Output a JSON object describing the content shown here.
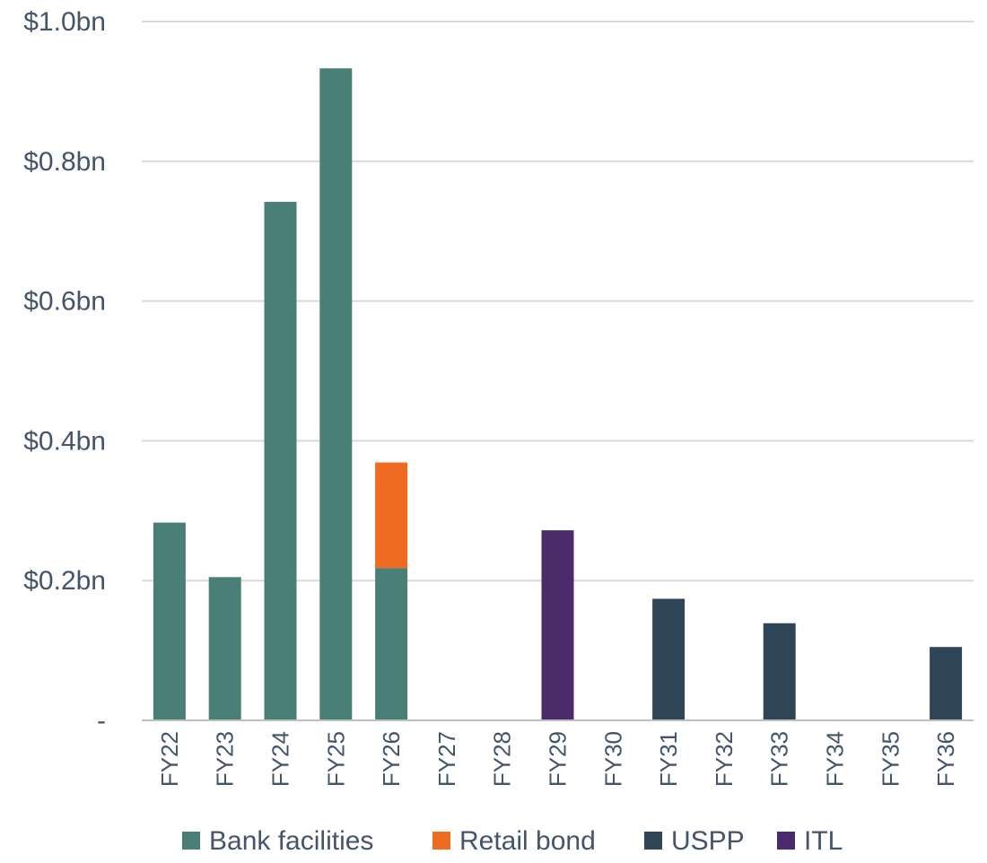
{
  "chart_data": {
    "type": "bar",
    "stacked": true,
    "categories": [
      "FY22",
      "FY23",
      "FY24",
      "FY25",
      "FY26",
      "FY27",
      "FY28",
      "FY29",
      "FY30",
      "FY31",
      "FY32",
      "FY33",
      "FY34",
      "FY35",
      "FY36"
    ],
    "series": [
      {
        "name": "Bank facilities",
        "color": "#4a7f78",
        "values": [
          0.283,
          0.205,
          0.742,
          0.933,
          0.218,
          0,
          0,
          0,
          0,
          0,
          0,
          0,
          0,
          0,
          0
        ]
      },
      {
        "name": "Retail bond",
        "color": "#f06b22",
        "values": [
          0,
          0,
          0,
          0,
          0.151,
          0,
          0,
          0,
          0,
          0,
          0,
          0,
          0,
          0,
          0
        ]
      },
      {
        "name": "USPP",
        "color": "#2e4657",
        "values": [
          0,
          0,
          0,
          0,
          0,
          0,
          0,
          0,
          0,
          0.174,
          0,
          0.139,
          0,
          0,
          0.105
        ]
      },
      {
        "name": "ITL",
        "color": "#4b2b6b",
        "values": [
          0,
          0,
          0,
          0,
          0,
          0,
          0,
          0.272,
          0,
          0,
          0,
          0,
          0,
          0,
          0
        ]
      }
    ],
    "yticks": [
      {
        "value": 0,
        "label": "-"
      },
      {
        "value": 0.2,
        "label": "$0.2bn"
      },
      {
        "value": 0.4,
        "label": "$0.4bn"
      },
      {
        "value": 0.6,
        "label": "$0.6bn"
      },
      {
        "value": 0.8,
        "label": "$0.8bn"
      },
      {
        "value": 1.0,
        "label": "$1.0bn"
      }
    ],
    "ylim": [
      0,
      1.0
    ],
    "grid": true,
    "legend_position": "bottom"
  }
}
